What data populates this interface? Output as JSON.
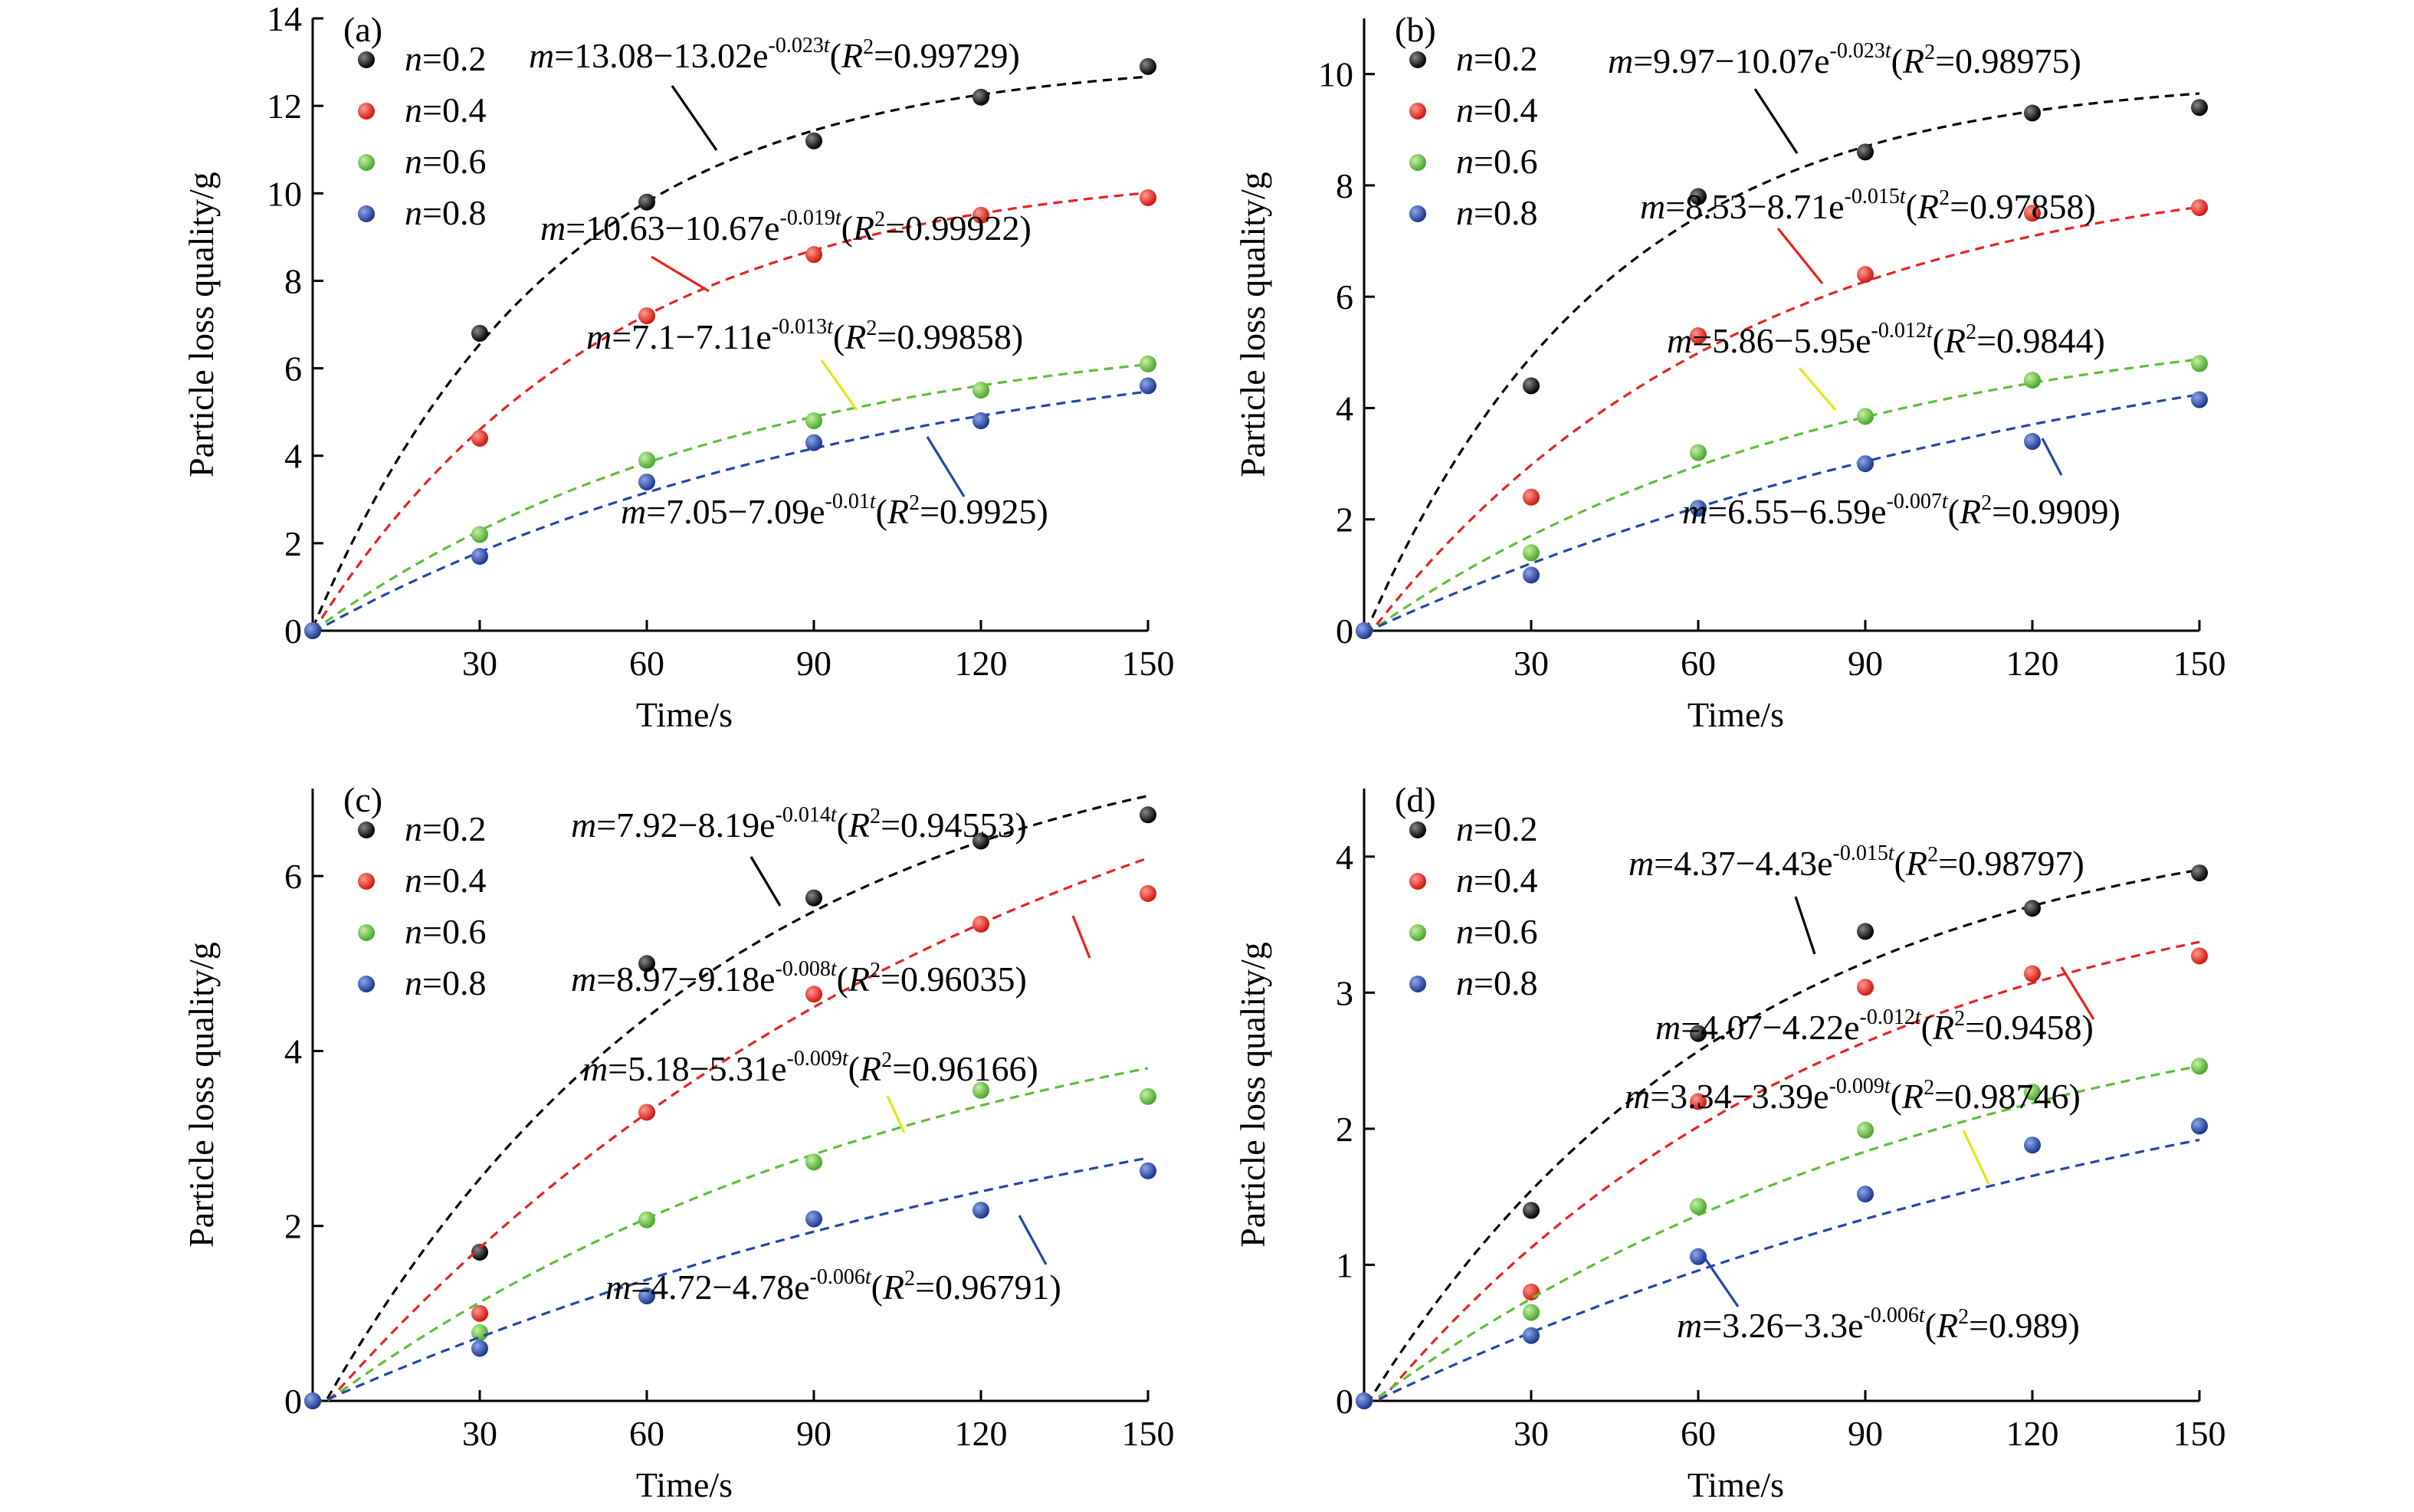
{
  "chart_data": [
    {
      "panel": "(a)",
      "type": "scatter",
      "xlabel": "Time/s",
      "ylabel": "Particle loss quality/g",
      "xlim": [
        0,
        150
      ],
      "ylim": [
        0,
        14
      ],
      "xticks": [
        30,
        60,
        90,
        120,
        150
      ],
      "yticks": [
        0,
        2,
        4,
        6,
        8,
        10,
        12,
        14
      ],
      "legend_position": "top-left",
      "series": [
        {
          "name": "n=0.2",
          "color": "#000000",
          "x": [
            0,
            30,
            60,
            90,
            120,
            150
          ],
          "y": [
            0,
            6.8,
            9.8,
            11.2,
            12.2,
            12.9
          ],
          "fit": {
            "a": 13.08,
            "b": 13.02,
            "k": 0.023,
            "exp": "-0.023t",
            "lead": "=13.08−13.02e",
            "r2": "=0.99729)",
            "line_color": "#000000"
          }
        },
        {
          "name": "n=0.4",
          "color": "#e8231e",
          "x": [
            0,
            30,
            60,
            90,
            120,
            150
          ],
          "y": [
            0,
            4.4,
            7.2,
            8.6,
            9.5,
            9.9
          ],
          "fit": {
            "a": 10.63,
            "b": 10.67,
            "k": 0.019,
            "exp": "-0.019t",
            "lead": "=10.63−10.67e",
            "r2": "=0.99922)",
            "line_color": "#e8231e"
          }
        },
        {
          "name": "n=0.6",
          "color": "#5dbf3a",
          "x": [
            0,
            30,
            60,
            90,
            120,
            150
          ],
          "y": [
            0,
            2.2,
            3.9,
            4.8,
            5.5,
            6.1
          ],
          "fit": {
            "a": 7.1,
            "b": 7.11,
            "k": 0.013,
            "exp": "-0.013t",
            "lead": "=7.1−7.11e",
            "r2": "=0.99858)",
            "line_color": "#e6e619"
          }
        },
        {
          "name": "n=0.8",
          "color": "#2446a8",
          "x": [
            0,
            30,
            60,
            90,
            120,
            150
          ],
          "y": [
            0,
            1.7,
            3.4,
            4.3,
            4.8,
            5.6
          ],
          "fit": {
            "a": 7.05,
            "b": 7.09,
            "k": 0.01,
            "exp": "-0.01t",
            "lead": "=7.05−7.09e",
            "r2": "=0.9925)",
            "line_color": "#2446a8"
          }
        }
      ]
    },
    {
      "panel": "(b)",
      "type": "scatter",
      "xlabel": "Time/s",
      "ylabel": "Particle loss quality/g",
      "xlim": [
        0,
        150
      ],
      "ylim": [
        0,
        11
      ],
      "xticks": [
        30,
        60,
        90,
        120,
        150
      ],
      "yticks": [
        0,
        2,
        4,
        6,
        8,
        10
      ],
      "legend_position": "top-left",
      "series": [
        {
          "name": "n=0.2",
          "color": "#000000",
          "x": [
            0,
            30,
            60,
            90,
            120,
            150
          ],
          "y": [
            0,
            4.4,
            7.8,
            8.6,
            9.3,
            9.4
          ],
          "fit": {
            "a": 9.97,
            "b": 10.07,
            "k": 0.023,
            "exp": "-0.023t",
            "lead": "=9.97−10.07e",
            "r2": "=0.98975)",
            "line_color": "#000000"
          }
        },
        {
          "name": "n=0.4",
          "color": "#e8231e",
          "x": [
            0,
            30,
            60,
            90,
            120,
            150
          ],
          "y": [
            0,
            2.4,
            5.3,
            6.4,
            7.5,
            7.6
          ],
          "fit": {
            "a": 8.53,
            "b": 8.71,
            "k": 0.015,
            "exp": "-0.015t",
            "lead": "=8.53−8.71e",
            "r2": "=0.97858)",
            "line_color": "#e8231e"
          }
        },
        {
          "name": "n=0.6",
          "color": "#5dbf3a",
          "x": [
            0,
            30,
            60,
            90,
            120,
            150
          ],
          "y": [
            0,
            1.4,
            3.2,
            3.85,
            4.5,
            4.8
          ],
          "fit": {
            "a": 5.86,
            "b": 5.95,
            "k": 0.012,
            "exp": "-0.012t",
            "lead": "=5.86−5.95e",
            "r2": "=0.9844)",
            "line_color": "#e6e619"
          }
        },
        {
          "name": "n=0.8",
          "color": "#2446a8",
          "x": [
            0,
            30,
            60,
            90,
            120,
            150
          ],
          "y": [
            0,
            1.0,
            2.2,
            3.0,
            3.4,
            4.15
          ],
          "fit": {
            "a": 6.55,
            "b": 6.59,
            "k": 0.007,
            "exp": "-0.007t",
            "lead": "=6.55−6.59e",
            "r2": "=0.9909)",
            "line_color": "#2446a8"
          }
        }
      ]
    },
    {
      "panel": "(c)",
      "type": "scatter",
      "xlabel": "Time/s",
      "ylabel": "Particle loss quality/g",
      "xlim": [
        0,
        150
      ],
      "ylim": [
        0,
        7
      ],
      "xticks": [
        30,
        60,
        90,
        120,
        150
      ],
      "yticks": [
        0,
        2,
        4,
        6
      ],
      "legend_position": "top-left",
      "series": [
        {
          "name": "n=0.2",
          "color": "#000000",
          "x": [
            0,
            30,
            60,
            90,
            120,
            150
          ],
          "y": [
            0,
            1.7,
            5.0,
            5.75,
            6.4,
            6.7
          ],
          "fit": {
            "a": 7.92,
            "b": 8.19,
            "k": 0.014,
            "exp": "-0.014t",
            "lead": "=7.92−8.19e",
            "r2": "=0.94553)",
            "line_color": "#000000"
          }
        },
        {
          "name": "n=0.4",
          "color": "#e8231e",
          "x": [
            0,
            30,
            60,
            90,
            120,
            150
          ],
          "y": [
            0,
            1.0,
            3.3,
            4.65,
            5.45,
            5.8
          ],
          "fit": {
            "a": 8.97,
            "b": 9.18,
            "k": 0.008,
            "exp": "-0.008t",
            "lead": "=8.97−9.18e",
            "r2": "=0.96035)",
            "line_color": "#e8231e"
          }
        },
        {
          "name": "n=0.6",
          "color": "#5dbf3a",
          "x": [
            0,
            30,
            60,
            90,
            120,
            150
          ],
          "y": [
            0,
            0.78,
            2.07,
            2.73,
            3.55,
            3.48
          ],
          "fit": {
            "a": 5.18,
            "b": 5.31,
            "k": 0.009,
            "exp": "-0.009t",
            "lead": "=5.18−5.31e",
            "r2": "=0.96166)",
            "line_color": "#e6e619"
          }
        },
        {
          "name": "n=0.8",
          "color": "#2446a8",
          "x": [
            0,
            30,
            60,
            90,
            120,
            150
          ],
          "y": [
            0,
            0.6,
            1.2,
            2.08,
            2.18,
            2.63
          ],
          "fit": {
            "a": 4.72,
            "b": 4.78,
            "k": 0.006,
            "exp": "-0.006t",
            "lead": "=4.72−4.78e",
            "r2": "=0.96791)",
            "line_color": "#2446a8"
          }
        }
      ]
    },
    {
      "panel": "(d)",
      "type": "scatter",
      "xlabel": "Time/s",
      "ylabel": "Particle loss quality/g",
      "xlim": [
        0,
        150
      ],
      "ylim": [
        0,
        4.5
      ],
      "xticks": [
        30,
        60,
        90,
        120,
        150
      ],
      "yticks": [
        0,
        1,
        2,
        3,
        4
      ],
      "legend_position": "top-left",
      "series": [
        {
          "name": "n=0.2",
          "color": "#000000",
          "x": [
            0,
            30,
            60,
            90,
            120,
            150
          ],
          "y": [
            0,
            1.4,
            2.7,
            3.45,
            3.62,
            3.88
          ],
          "fit": {
            "a": 4.37,
            "b": 4.43,
            "k": 0.015,
            "exp": "-0.015t",
            "lead": "=4.37−4.43e",
            "r2": "=0.98797)",
            "line_color": "#000000"
          }
        },
        {
          "name": "n=0.4",
          "color": "#e8231e",
          "x": [
            0,
            30,
            60,
            90,
            120,
            150
          ],
          "y": [
            0,
            0.8,
            2.2,
            3.04,
            3.14,
            3.27
          ],
          "fit": {
            "a": 4.07,
            "b": 4.22,
            "k": 0.012,
            "exp": "-0.012t",
            "lead": "=4.07−4.22e",
            "r2": "=0.9458)",
            "line_color": "#e8231e"
          }
        },
        {
          "name": "n=0.6",
          "color": "#5dbf3a",
          "x": [
            0,
            30,
            60,
            90,
            120,
            150
          ],
          "y": [
            0,
            0.65,
            1.43,
            1.99,
            2.27,
            2.46
          ],
          "fit": {
            "a": 3.34,
            "b": 3.39,
            "k": 0.009,
            "exp": "-0.009t",
            "lead": "=3.34−3.39e",
            "r2": "=0.98746)",
            "line_color": "#e6e619"
          }
        },
        {
          "name": "n=0.8",
          "color": "#2446a8",
          "x": [
            0,
            30,
            60,
            90,
            120,
            150
          ],
          "y": [
            0,
            0.48,
            1.06,
            1.52,
            1.88,
            2.02
          ],
          "fit": {
            "a": 3.26,
            "b": 3.3,
            "k": 0.006,
            "exp": "-0.006t",
            "lead": "=3.26−3.3e",
            "r2": "=0.989)",
            "line_color": "#2446a8"
          }
        }
      ]
    }
  ]
}
